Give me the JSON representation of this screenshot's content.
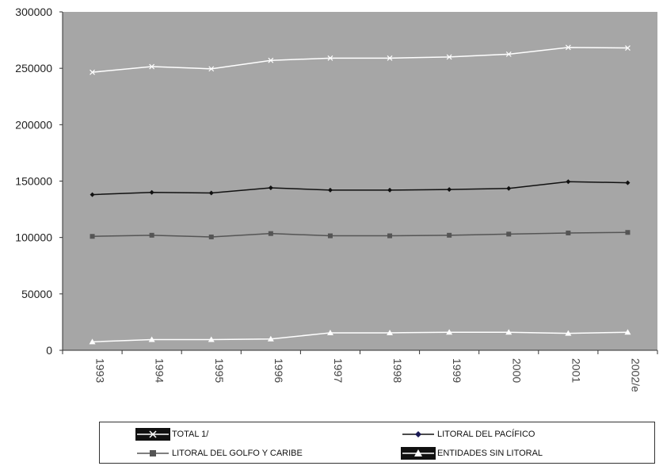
{
  "chart_data": {
    "type": "line",
    "categories": [
      "1993",
      "1994",
      "1995",
      "1996",
      "1997",
      "1998",
      "1999",
      "2000",
      "2001",
      "2002/e"
    ],
    "ylim": [
      0,
      300000
    ],
    "yticks": [
      "0",
      "50000",
      "100000",
      "150000",
      "200000",
      "250000",
      "300000"
    ],
    "grid": false,
    "legend_position": "bottom",
    "series": [
      {
        "name": "TOTAL  1/",
        "marker": "x",
        "color": "#ffffff",
        "values": [
          246500,
          251500,
          249500,
          257000,
          259000,
          259000,
          260000,
          262500,
          268500,
          268000
        ]
      },
      {
        "name": "LITORAL DEL PACÍFICO",
        "marker": "diamond",
        "color": "#111111",
        "values": [
          138000,
          140000,
          139500,
          144000,
          142000,
          142000,
          142500,
          143500,
          149500,
          148500
        ]
      },
      {
        "name": "LITORAL DEL GOLFO Y CARIBE",
        "marker": "square",
        "color": "#555555",
        "values": [
          101000,
          102000,
          100500,
          103500,
          101500,
          101500,
          102000,
          103000,
          104000,
          104500
        ]
      },
      {
        "name": "ENTIDADES SIN LITORAL",
        "marker": "triangle",
        "color": "#ffffff",
        "values": [
          7500,
          9500,
          9500,
          10000,
          15500,
          15500,
          16000,
          16000,
          15000,
          16000
        ]
      }
    ]
  },
  "colors": {
    "plot_background": "#a6a6a6",
    "axis": "#333333"
  }
}
